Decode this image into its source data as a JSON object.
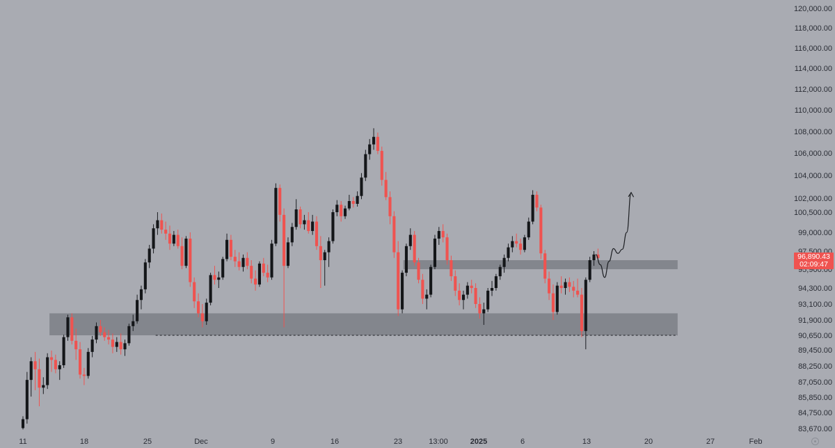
{
  "chart_data": {
    "type": "candlestick",
    "instrument": "BTCUSD",
    "price_axis": {
      "ticks": [
        120000,
        118000,
        116000,
        114000,
        112000,
        110000,
        108000,
        106000,
        104000,
        102000,
        100500,
        99000,
        97500,
        95900,
        94300,
        93100,
        91900,
        90650,
        89450,
        88250,
        87050,
        85850,
        84750,
        83670
      ],
      "labels": [
        "120,000.00",
        "118,000.00",
        "116,000.00",
        "114,000.00",
        "112,000.00",
        "110,000.00",
        "108,000.00",
        "106,000.00",
        "104,000.00",
        "102,000.00",
        "100,500.00",
        "99,000.00",
        "97,500.00",
        "95,900.00",
        "94,300.00",
        "93,100.00",
        "91,900.00",
        "90,650.00",
        "89,450.00",
        "88,250.00",
        "87,050.00",
        "85,850.00",
        "84,750.00",
        "83,670.00"
      ],
      "scale": "log"
    },
    "time_axis": {
      "labels": [
        "11",
        "18",
        "25",
        "Dec",
        "9",
        "16",
        "23",
        "13:00",
        "2025",
        "6",
        "13",
        "20",
        "27",
        "Feb"
      ],
      "bold": [
        "2025"
      ],
      "range": [
        "2024-11-11",
        "2025-02-01"
      ]
    },
    "last_price": {
      "value": "96,890.43",
      "countdown": "02:09:47",
      "color": "#ef5350"
    },
    "support_zone": {
      "from": 90650,
      "to": 92400,
      "start": "2024-11-14",
      "end": "2025-01-24"
    },
    "resistance_zone": {
      "from": 95900,
      "to": 96700,
      "start": "2024-12-24",
      "end": "2025-01-24"
    },
    "dashed_line": {
      "price": 90650,
      "start": "2024-11-26",
      "end": "2025-01-24"
    },
    "projection_path": {
      "points": [
        [
          "2025-01-14T18:00",
          97200
        ],
        [
          "2025-01-15T06:00",
          96300
        ],
        [
          "2025-01-15T18:00",
          95200
        ],
        [
          "2025-01-16T06:00",
          96600
        ],
        [
          "2025-01-16T18:00",
          97700
        ],
        [
          "2025-01-17T06:00",
          97300
        ],
        [
          "2025-01-17T18:00",
          97650
        ],
        [
          "2025-01-18T06:00",
          99000
        ],
        [
          "2025-01-18T18:00",
          102500
        ]
      ]
    },
    "colors": {
      "background": "#a9abb2",
      "zone": "#7d7f86",
      "up_body": "#141619",
      "down_body": "#ef5350",
      "wick": "#1a1c20",
      "drawing": "#1c1e22"
    },
    "candles": [
      [
        83700,
        84500,
        83600,
        84300
      ],
      [
        84300,
        87800,
        84000,
        87200
      ],
      [
        87200,
        88900,
        85900,
        88600
      ],
      [
        88600,
        89300,
        86400,
        88000
      ],
      [
        88000,
        88800,
        85200,
        86600
      ],
      [
        86600,
        87400,
        86100,
        86800
      ],
      [
        86800,
        89200,
        86500,
        88900
      ],
      [
        88900,
        89400,
        87800,
        88700
      ],
      [
        88700,
        89100,
        87700,
        88000
      ],
      [
        88000,
        88600,
        87200,
        88300
      ],
      [
        88300,
        90700,
        88100,
        90500
      ],
      [
        90500,
        92300,
        90200,
        92100
      ],
      [
        92100,
        92400,
        89900,
        90200
      ],
      [
        90200,
        91200,
        88700,
        89500
      ],
      [
        89500,
        90100,
        87300,
        87600
      ],
      [
        87600,
        88100,
        86800,
        87500
      ],
      [
        87500,
        89600,
        87300,
        89300
      ],
      [
        89300,
        90600,
        88900,
        90300
      ],
      [
        90300,
        91700,
        90000,
        91400
      ],
      [
        91400,
        91900,
        90600,
        90900
      ],
      [
        90900,
        91300,
        90200,
        90500
      ],
      [
        90500,
        91100,
        89900,
        90300
      ],
      [
        90300,
        90800,
        89200,
        89700
      ],
      [
        89700,
        90500,
        89300,
        90100
      ],
      [
        90100,
        90800,
        89100,
        89500
      ],
      [
        89500,
        90300,
        89000,
        90000
      ],
      [
        90000,
        91600,
        89800,
        91400
      ],
      [
        91400,
        92300,
        91000,
        91800
      ],
      [
        91800,
        93800,
        91600,
        93400
      ],
      [
        93400,
        94500,
        92700,
        94200
      ],
      [
        94200,
        96800,
        93900,
        96500
      ],
      [
        96500,
        98000,
        96000,
        97700
      ],
      [
        97700,
        99600,
        97300,
        99300
      ],
      [
        99300,
        100500,
        98800,
        99900
      ],
      [
        99900,
        100400,
        98900,
        99200
      ],
      [
        99200,
        99800,
        98400,
        98900
      ],
      [
        98900,
        99500,
        97600,
        98100
      ],
      [
        98100,
        99100,
        97900,
        98800
      ],
      [
        98800,
        99200,
        97700,
        97900
      ],
      [
        97900,
        98600,
        95900,
        96200
      ],
      [
        96200,
        98700,
        96000,
        98500
      ],
      [
        98500,
        99000,
        94400,
        94800
      ],
      [
        94800,
        95200,
        92800,
        93300
      ],
      [
        93300,
        93900,
        92100,
        92400
      ],
      [
        92400,
        93100,
        91300,
        91800
      ],
      [
        91800,
        93500,
        91500,
        93200
      ],
      [
        93200,
        95600,
        93000,
        95400
      ],
      [
        95400,
        96200,
        94600,
        95000
      ],
      [
        95000,
        95700,
        94300,
        95200
      ],
      [
        95200,
        97000,
        95000,
        96800
      ],
      [
        96800,
        98900,
        96600,
        98400
      ],
      [
        98400,
        98800,
        96700,
        97000
      ],
      [
        97000,
        97600,
        96100,
        96600
      ],
      [
        96600,
        97400,
        95800,
        96100
      ],
      [
        96100,
        97200,
        95700,
        96900
      ],
      [
        96900,
        97400,
        95900,
        96200
      ],
      [
        96200,
        96700,
        94700,
        95100
      ],
      [
        95100,
        95800,
        94100,
        94600
      ],
      [
        94600,
        96600,
        94400,
        96400
      ],
      [
        96400,
        96900,
        95300,
        95600
      ],
      [
        95600,
        96300,
        94800,
        95200
      ],
      [
        95200,
        98400,
        95000,
        98100
      ],
      [
        98100,
        103300,
        97900,
        102900
      ],
      [
        102900,
        103200,
        99800,
        100300
      ],
      [
        100300,
        100900,
        91300,
        96200
      ],
      [
        96200,
        98600,
        96000,
        98200
      ],
      [
        98200,
        99700,
        97900,
        99400
      ],
      [
        99400,
        101900,
        99200,
        100800
      ],
      [
        100800,
        101100,
        99300,
        99600
      ],
      [
        99600,
        100300,
        99200,
        99900
      ],
      [
        99900,
        100500,
        98900,
        99100
      ],
      [
        99100,
        100300,
        98800,
        99800
      ],
      [
        99800,
        100200,
        97600,
        97900
      ],
      [
        97900,
        98700,
        94300,
        96700
      ],
      [
        96700,
        97600,
        94500,
        97400
      ],
      [
        97400,
        98600,
        96100,
        98300
      ],
      [
        98300,
        100800,
        98100,
        100500
      ],
      [
        100500,
        101800,
        100200,
        101300
      ],
      [
        101300,
        101700,
        99800,
        100200
      ],
      [
        100200,
        101200,
        100000,
        100900
      ],
      [
        100900,
        102300,
        100700,
        101700
      ],
      [
        101700,
        102100,
        101000,
        101400
      ],
      [
        101400,
        102600,
        101100,
        102200
      ],
      [
        102200,
        104200,
        101900,
        103800
      ],
      [
        103800,
        106300,
        103500,
        105900
      ],
      [
        105900,
        107300,
        105400,
        106800
      ],
      [
        106800,
        108300,
        106300,
        107500
      ],
      [
        107500,
        107900,
        105900,
        106200
      ],
      [
        106200,
        106600,
        103100,
        103600
      ],
      [
        103600,
        104300,
        101800,
        102100
      ],
      [
        102100,
        102600,
        99600,
        100200
      ],
      [
        100200,
        100600,
        96900,
        97400
      ],
      [
        97400,
        98300,
        92200,
        92700
      ],
      [
        92700,
        95800,
        92400,
        95600
      ],
      [
        95600,
        98100,
        95300,
        97900
      ],
      [
        97900,
        99300,
        97600,
        98800
      ],
      [
        98800,
        99100,
        96200,
        96500
      ],
      [
        96500,
        96900,
        94700,
        95000
      ],
      [
        95000,
        95500,
        93100,
        93500
      ],
      [
        93500,
        94200,
        92700,
        93800
      ],
      [
        93800,
        96300,
        93600,
        96100
      ],
      [
        96100,
        98800,
        95900,
        98500
      ],
      [
        98500,
        99400,
        98000,
        99100
      ],
      [
        99100,
        99600,
        98200,
        98600
      ],
      [
        98600,
        98900,
        96300,
        96700
      ],
      [
        96700,
        97100,
        94900,
        95300
      ],
      [
        95300,
        95800,
        93700,
        94100
      ],
      [
        94100,
        94700,
        93000,
        93400
      ],
      [
        93400,
        94100,
        92700,
        93800
      ],
      [
        93800,
        94800,
        93500,
        94500
      ],
      [
        94500,
        95000,
        93900,
        94300
      ],
      [
        94300,
        94700,
        92800,
        93100
      ],
      [
        93100,
        93600,
        92000,
        92400
      ],
      [
        92400,
        93200,
        91500,
        92700
      ],
      [
        92700,
        94300,
        92500,
        94100
      ],
      [
        94100,
        94900,
        93700,
        94300
      ],
      [
        94300,
        95500,
        94100,
        95300
      ],
      [
        95300,
        96300,
        95000,
        96100
      ],
      [
        96100,
        97200,
        95600,
        96900
      ],
      [
        96900,
        98100,
        96600,
        97800
      ],
      [
        97800,
        98700,
        97400,
        98300
      ],
      [
        98300,
        98900,
        97800,
        98100
      ],
      [
        98100,
        98500,
        97200,
        97600
      ],
      [
        97600,
        98800,
        97400,
        98600
      ],
      [
        98600,
        100100,
        98400,
        99800
      ],
      [
        99800,
        102700,
        99600,
        102300
      ],
      [
        102300,
        102600,
        100600,
        101000
      ],
      [
        101000,
        101300,
        96800,
        97300
      ],
      [
        97300,
        97600,
        94700,
        95100
      ],
      [
        95100,
        95700,
        93400,
        93900
      ],
      [
        93900,
        94600,
        91900,
        92500
      ],
      [
        92500,
        94800,
        92300,
        94500
      ],
      [
        94500,
        95300,
        93900,
        94300
      ],
      [
        94300,
        95100,
        93800,
        94800
      ],
      [
        94800,
        95200,
        94000,
        94400
      ],
      [
        94400,
        94900,
        93600,
        94100
      ],
      [
        94100,
        95100,
        93600,
        93800
      ],
      [
        93800,
        94300,
        90500,
        91000
      ],
      [
        91000,
        95200,
        89500,
        95000
      ],
      [
        95000,
        97000,
        94800,
        96700
      ],
      [
        96700,
        97500,
        96200,
        97200
      ],
      [
        97200,
        97700,
        96700,
        96890
      ]
    ]
  }
}
